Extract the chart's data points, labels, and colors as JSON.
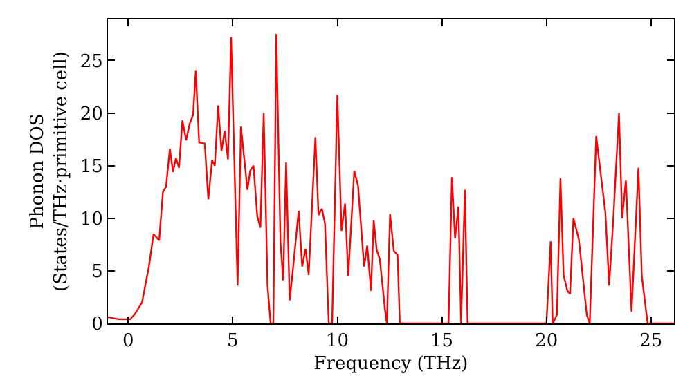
{
  "chart_data": {
    "type": "line",
    "xlabel": "Frequency (THz)",
    "ylabel": "Phonon DOS\n(States/THz·primitive cell)",
    "xlim": [
      -0.97,
      26.1
    ],
    "ylim": [
      0,
      28.9
    ],
    "xticks": [
      0,
      5,
      10,
      15,
      20,
      25
    ],
    "yticks": [
      0,
      5,
      10,
      15,
      20,
      25
    ],
    "grid": false,
    "marker": "none",
    "line_style": "solid",
    "series": [
      {
        "color": "#ff0000",
        "x": [
          -0.97,
          -0.46,
          0.1,
          0.32,
          0.66,
          0.99,
          1.21,
          1.48,
          1.66,
          1.81,
          1.99,
          2.14,
          2.28,
          2.43,
          2.59,
          2.77,
          2.94,
          3.1,
          3.23,
          3.39,
          3.66,
          3.83,
          4.01,
          4.14,
          4.3,
          4.46,
          4.61,
          4.77,
          4.92,
          5.23,
          5.39,
          5.7,
          5.83,
          5.99,
          6.17,
          6.32,
          6.48,
          6.66,
          6.81,
          6.94,
          7.08,
          7.28,
          7.41,
          7.55,
          7.72,
          7.88,
          8.15,
          8.32,
          8.48,
          8.63,
          8.95,
          9.1,
          9.26,
          9.41,
          9.59,
          9.75,
          10.0,
          10.2,
          10.37,
          10.52,
          10.81,
          10.99,
          11.28,
          11.43,
          11.61,
          11.74,
          11.88,
          12.03,
          12.28,
          12.37,
          12.52,
          12.7,
          12.88,
          12.99,
          15.32,
          15.48,
          15.63,
          15.79,
          15.92,
          16.1,
          16.23,
          20.0,
          20.2,
          20.3,
          20.5,
          20.67,
          20.82,
          21.0,
          21.13,
          21.29,
          21.55,
          21.93,
          22.07,
          22.38,
          22.82,
          23.0,
          23.2,
          23.47,
          23.62,
          23.8,
          24.07,
          24.4,
          24.56,
          24.84,
          26.1
        ],
        "values": [
          0.6,
          0.4,
          0.4,
          0.9,
          2.0,
          5.4,
          8.5,
          7.9,
          12.5,
          13.0,
          16.6,
          14.4,
          15.7,
          14.8,
          19.3,
          17.4,
          19.0,
          19.8,
          24.0,
          17.2,
          17.1,
          11.8,
          15.5,
          15.0,
          20.7,
          16.4,
          18.3,
          15.6,
          27.2,
          3.6,
          18.7,
          12.7,
          14.5,
          15.0,
          10.2,
          9.1,
          20.0,
          3.6,
          0,
          0,
          27.5,
          7.7,
          4.1,
          15.3,
          2.2,
          5.2,
          10.7,
          5.4,
          7.1,
          4.6,
          17.7,
          10.3,
          10.9,
          9.5,
          0,
          0,
          21.7,
          8.8,
          11.4,
          4.5,
          14.5,
          13.1,
          5.4,
          7.4,
          3.1,
          9.8,
          7.0,
          6.1,
          1.3,
          0,
          10.4,
          6.9,
          6.5,
          0,
          0,
          13.9,
          8.1,
          11.1,
          0,
          12.7,
          0,
          0,
          7.8,
          0,
          0.8,
          13.8,
          4.6,
          3.1,
          2.8,
          10.0,
          8.0,
          0.8,
          0,
          17.8,
          10.5,
          3.6,
          10.0,
          20.0,
          10.0,
          13.6,
          1.1,
          14.8,
          4.5,
          0,
          0
        ]
      }
    ]
  }
}
